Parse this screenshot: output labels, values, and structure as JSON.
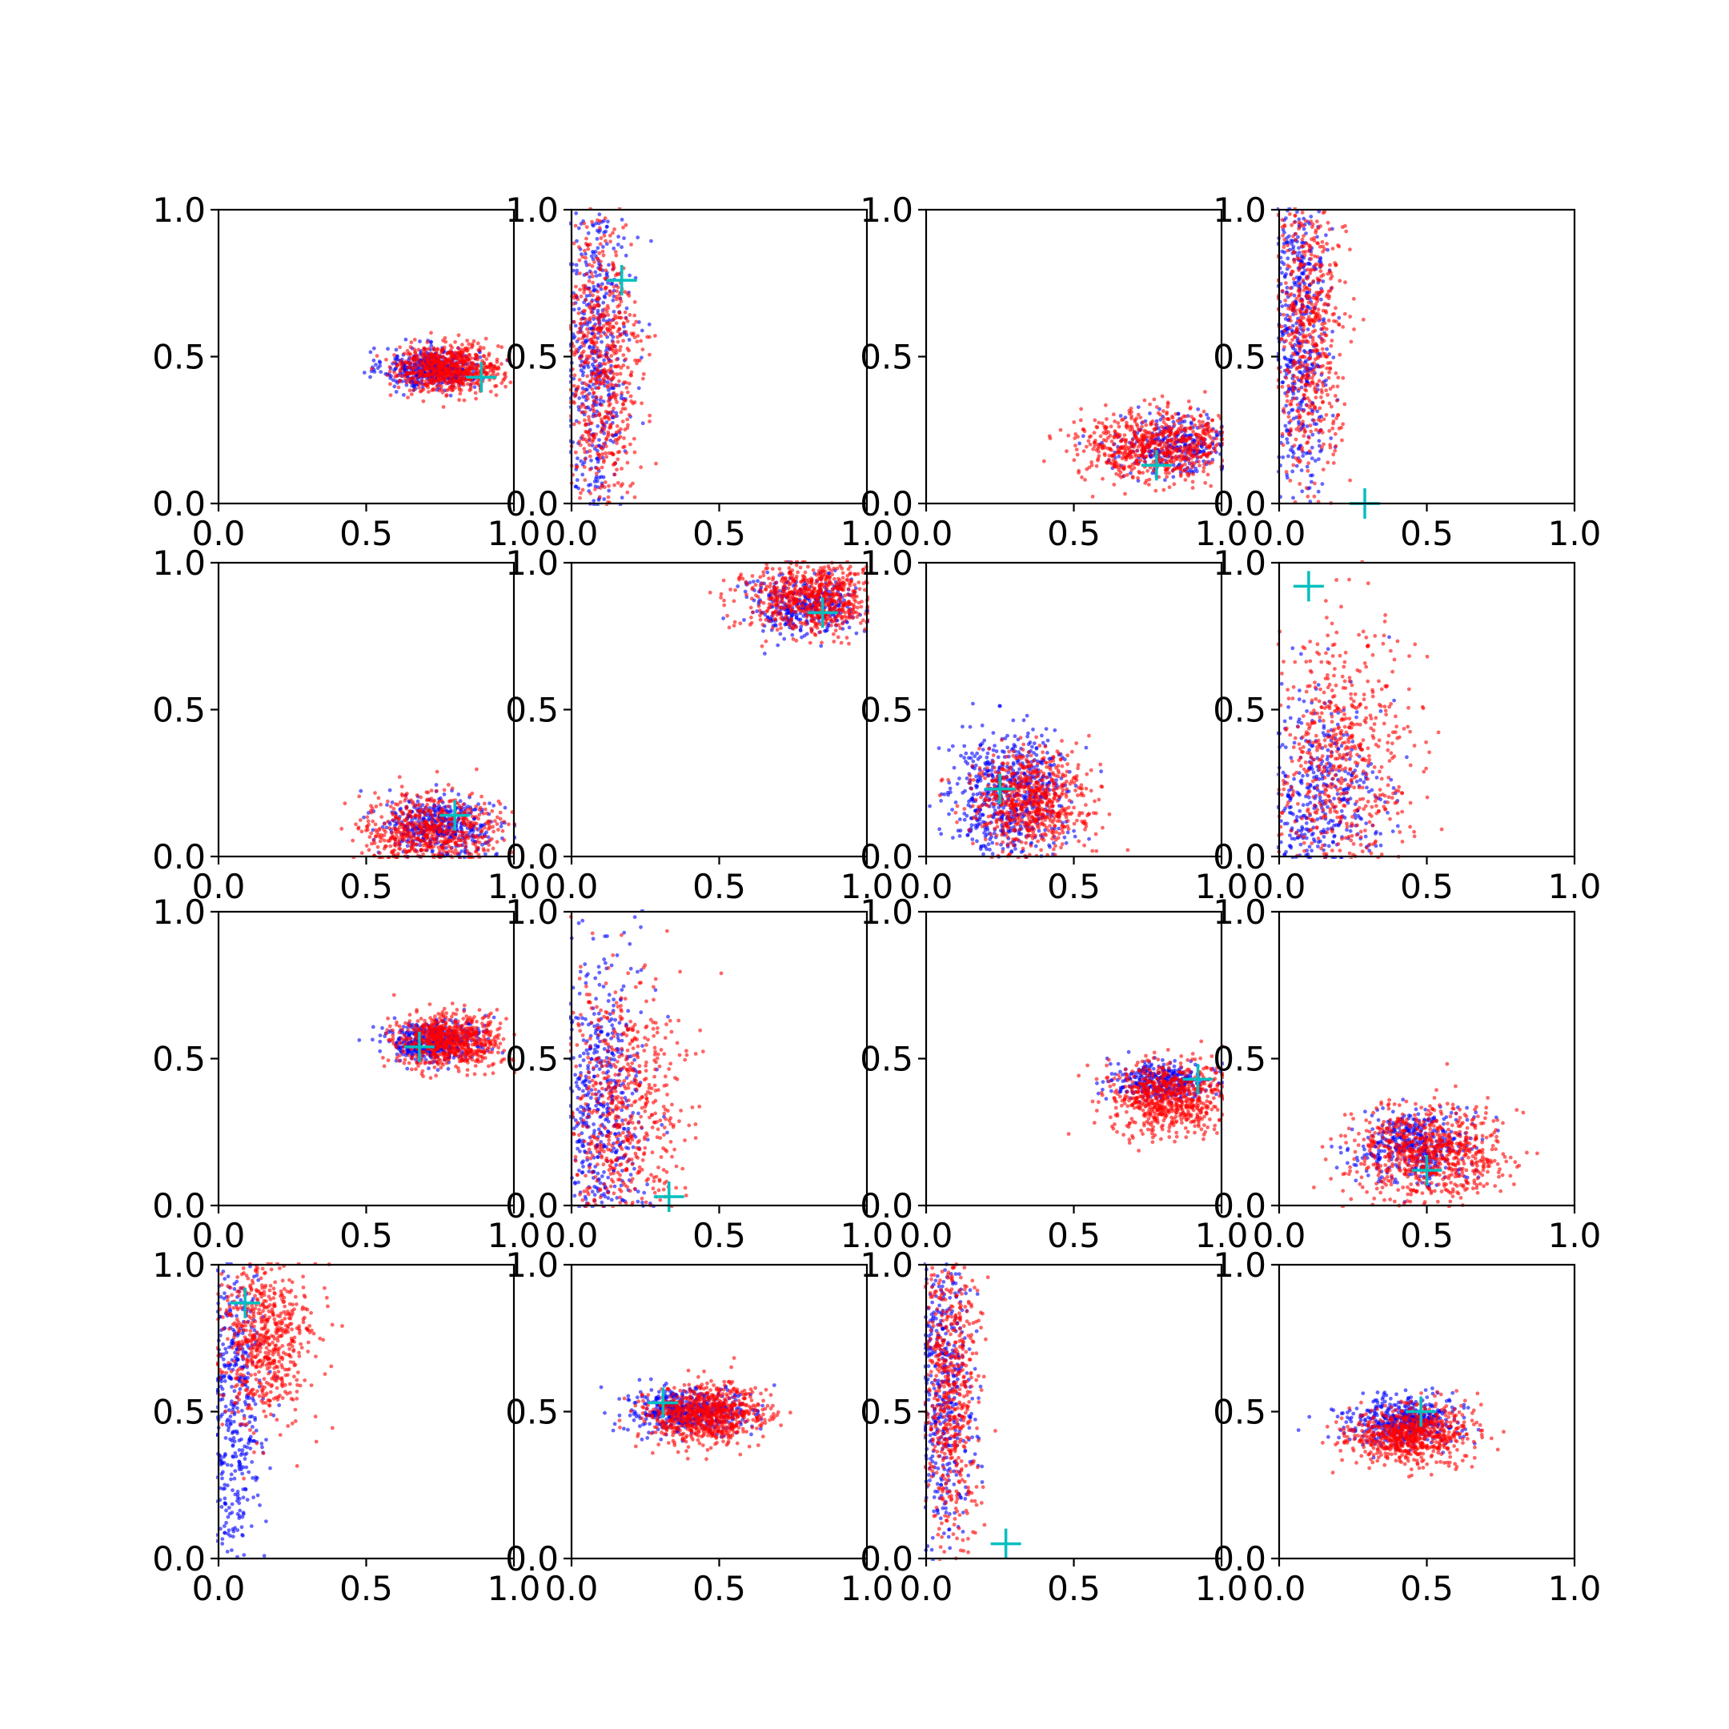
{
  "chart_data": {
    "type": "scatter",
    "layout": "4x4 grid of scatter subplots",
    "xlim": [
      0,
      1
    ],
    "ylim": [
      0,
      1
    ],
    "ticks": [
      0.0,
      0.5,
      1.0
    ],
    "tick_labels": [
      "0.0",
      "0.5",
      "1.0"
    ],
    "grid": false,
    "legend": "none",
    "marker_colors": {
      "series_a": "#0000ff",
      "series_b": "#ff0000",
      "reference": "#00bfbf"
    },
    "reference_marker": "+",
    "panels": [
      {
        "series_a": {
          "cx": 0.72,
          "cy": 0.46,
          "sx": 0.08,
          "sy": 0.035,
          "n": 450
        },
        "series_b": {
          "cx": 0.78,
          "cy": 0.46,
          "sx": 0.09,
          "sy": 0.04,
          "n": 700
        },
        "reference": [
          0.89,
          0.43
        ]
      },
      {
        "series_a": {
          "cx": 0.08,
          "cy": 0.5,
          "sx": 0.06,
          "sy": 0.28,
          "n": 500
        },
        "series_b": {
          "cx": 0.1,
          "cy": 0.45,
          "sx": 0.07,
          "sy": 0.27,
          "n": 650
        },
        "reference": [
          0.17,
          0.76
        ]
      },
      {
        "series_a": {
          "cx": 0.85,
          "cy": 0.2,
          "sx": 0.1,
          "sy": 0.05,
          "n": 300
        },
        "series_b": {
          "cx": 0.78,
          "cy": 0.2,
          "sx": 0.13,
          "sy": 0.06,
          "n": 700
        },
        "reference": [
          0.78,
          0.13
        ]
      },
      {
        "series_a": {
          "cx": 0.07,
          "cy": 0.6,
          "sx": 0.05,
          "sy": 0.27,
          "n": 500
        },
        "series_b": {
          "cx": 0.1,
          "cy": 0.6,
          "sx": 0.06,
          "sy": 0.25,
          "n": 600
        },
        "reference": [
          0.29,
          0.0
        ]
      },
      {
        "series_a": {
          "cx": 0.75,
          "cy": 0.1,
          "sx": 0.09,
          "sy": 0.05,
          "n": 450
        },
        "series_b": {
          "cx": 0.72,
          "cy": 0.08,
          "sx": 0.12,
          "sy": 0.07,
          "n": 650
        },
        "reference": [
          0.8,
          0.14
        ]
      },
      {
        "series_a": {
          "cx": 0.78,
          "cy": 0.85,
          "sx": 0.1,
          "sy": 0.05,
          "n": 350
        },
        "series_b": {
          "cx": 0.82,
          "cy": 0.88,
          "sx": 0.12,
          "sy": 0.06,
          "n": 700
        },
        "reference": [
          0.85,
          0.83
        ]
      },
      {
        "series_a": {
          "cx": 0.28,
          "cy": 0.22,
          "sx": 0.1,
          "sy": 0.1,
          "n": 600
        },
        "series_b": {
          "cx": 0.35,
          "cy": 0.18,
          "sx": 0.1,
          "sy": 0.09,
          "n": 700
        },
        "reference": [
          0.25,
          0.23
        ]
      },
      {
        "series_a": {
          "cx": 0.12,
          "cy": 0.15,
          "sx": 0.12,
          "sy": 0.2,
          "n": 550
        },
        "series_b": {
          "cx": 0.2,
          "cy": 0.3,
          "sx": 0.12,
          "sy": 0.25,
          "n": 650
        },
        "reference": [
          0.1,
          0.92
        ]
      },
      {
        "series_a": {
          "cx": 0.72,
          "cy": 0.56,
          "sx": 0.08,
          "sy": 0.035,
          "n": 450
        },
        "series_b": {
          "cx": 0.78,
          "cy": 0.56,
          "sx": 0.09,
          "sy": 0.045,
          "n": 700
        },
        "reference": [
          0.68,
          0.54
        ]
      },
      {
        "series_a": {
          "cx": 0.1,
          "cy": 0.3,
          "sx": 0.08,
          "sy": 0.28,
          "n": 550
        },
        "series_b": {
          "cx": 0.18,
          "cy": 0.3,
          "sx": 0.1,
          "sy": 0.25,
          "n": 650
        },
        "reference": [
          0.33,
          0.03
        ]
      },
      {
        "series_a": {
          "cx": 0.8,
          "cy": 0.42,
          "sx": 0.09,
          "sy": 0.03,
          "n": 350
        },
        "series_b": {
          "cx": 0.82,
          "cy": 0.37,
          "sx": 0.1,
          "sy": 0.06,
          "n": 700
        },
        "reference": [
          0.92,
          0.43
        ]
      },
      {
        "series_a": {
          "cx": 0.45,
          "cy": 0.2,
          "sx": 0.09,
          "sy": 0.06,
          "n": 400
        },
        "series_b": {
          "cx": 0.5,
          "cy": 0.18,
          "sx": 0.13,
          "sy": 0.08,
          "n": 750
        },
        "reference": [
          0.5,
          0.12
        ]
      },
      {
        "series_a": {
          "cx": 0.05,
          "cy": 0.5,
          "sx": 0.05,
          "sy": 0.3,
          "n": 450
        },
        "series_b": {
          "cx": 0.15,
          "cy": 0.75,
          "sx": 0.08,
          "sy": 0.15,
          "n": 650
        },
        "reference": [
          0.09,
          0.87
        ]
      },
      {
        "series_a": {
          "cx": 0.4,
          "cy": 0.5,
          "sx": 0.1,
          "sy": 0.04,
          "n": 450
        },
        "series_b": {
          "cx": 0.45,
          "cy": 0.49,
          "sx": 0.1,
          "sy": 0.05,
          "n": 750
        },
        "reference": [
          0.31,
          0.53
        ]
      },
      {
        "series_a": {
          "cx": 0.06,
          "cy": 0.6,
          "sx": 0.05,
          "sy": 0.27,
          "n": 500
        },
        "series_b": {
          "cx": 0.08,
          "cy": 0.55,
          "sx": 0.05,
          "sy": 0.28,
          "n": 600
        },
        "reference": [
          0.27,
          0.05
        ]
      },
      {
        "series_a": {
          "cx": 0.42,
          "cy": 0.47,
          "sx": 0.1,
          "sy": 0.04,
          "n": 450
        },
        "series_b": {
          "cx": 0.45,
          "cy": 0.42,
          "sx": 0.1,
          "sy": 0.05,
          "n": 700
        },
        "reference": [
          0.48,
          0.5
        ]
      }
    ]
  }
}
